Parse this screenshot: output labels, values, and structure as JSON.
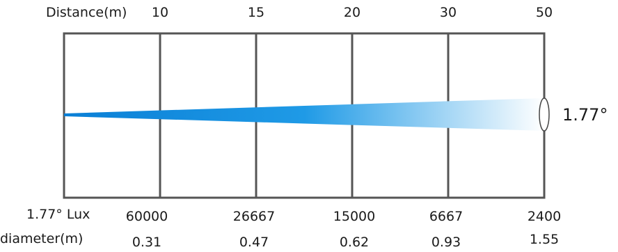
{
  "header": {
    "distance_label": "Distance(m)"
  },
  "distances": [
    "10",
    "15",
    "20",
    "30",
    "50"
  ],
  "beam": {
    "angle_label": "1.77°",
    "gradient_start": "#0a7fd6",
    "gradient_end": "#ffffff"
  },
  "rows": {
    "lux": {
      "label": "1.77° Lux",
      "values": [
        "60000",
        "26667",
        "15000",
        "6667",
        "2400"
      ]
    },
    "diameter": {
      "label": "diameter(m)",
      "values": [
        "0.31",
        "0.47",
        "0.62",
        "0.93",
        "1.55"
      ]
    }
  }
}
